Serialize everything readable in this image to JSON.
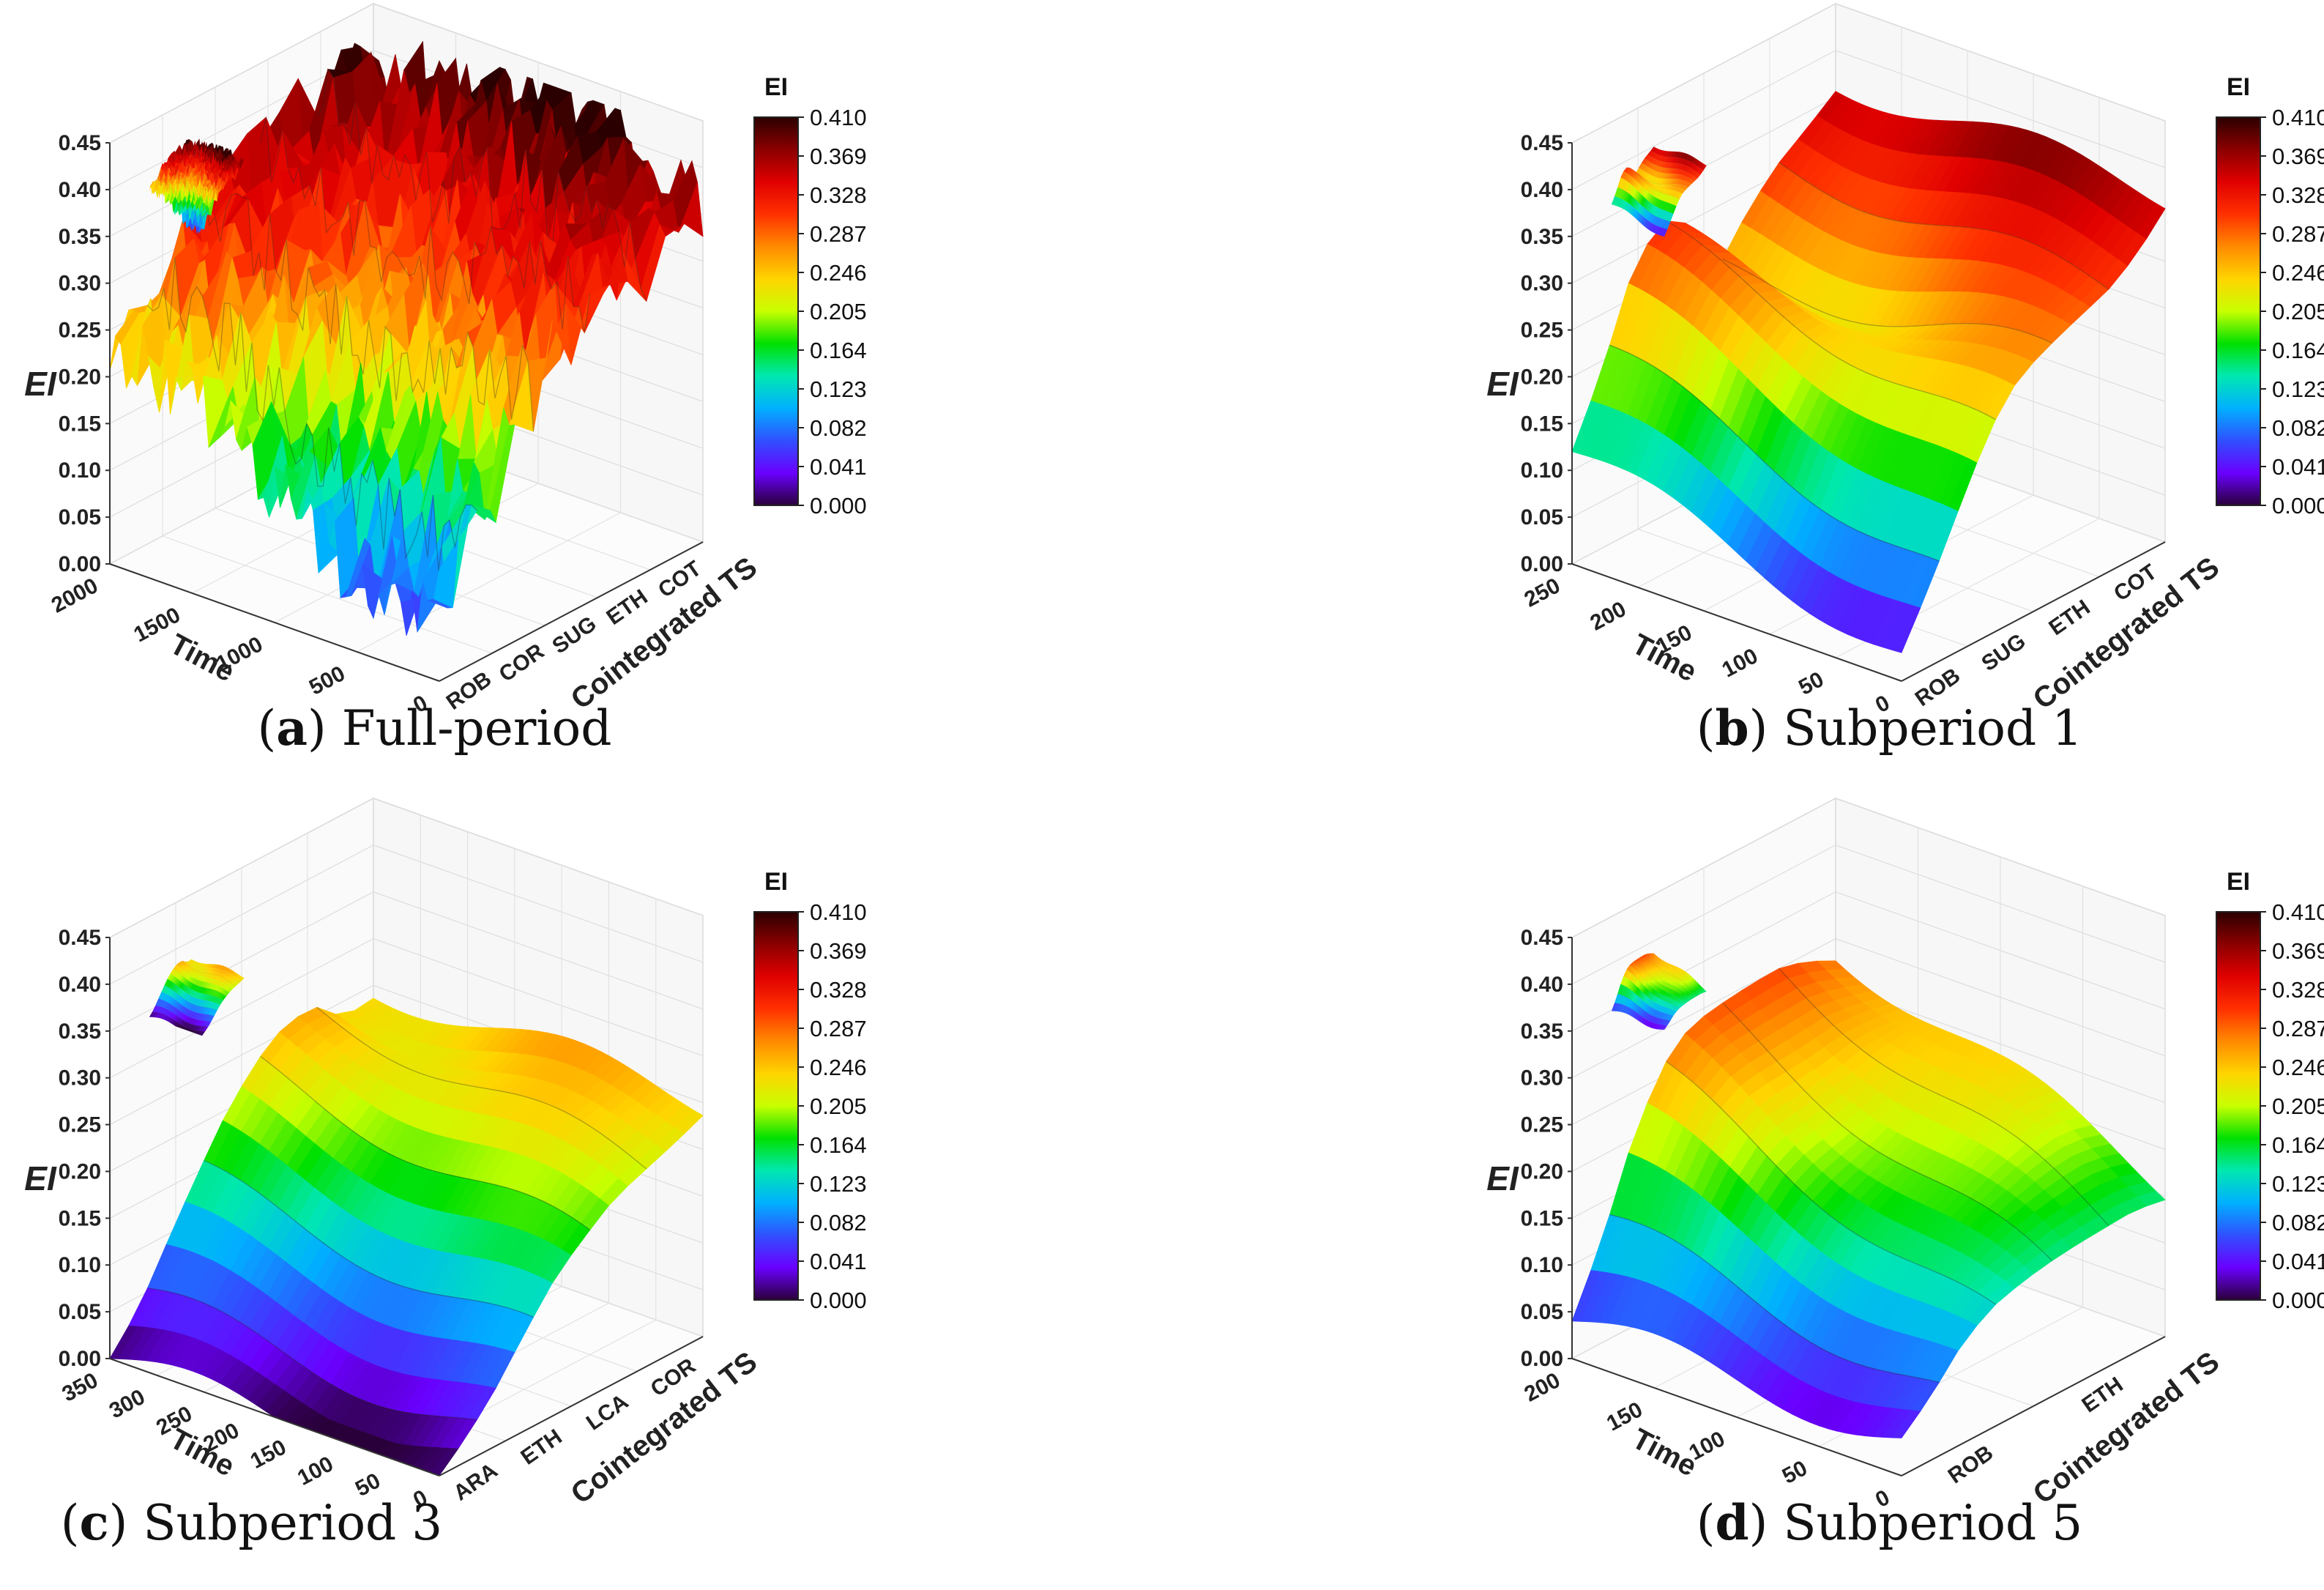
{
  "colorbar": {
    "title": "EI",
    "ticks": [
      "0.410",
      "0.369",
      "0.328",
      "0.287",
      "0.246",
      "0.205",
      "0.164",
      "0.123",
      "0.082",
      "0.041",
      "0.000"
    ],
    "stops": [
      "#2b0000",
      "#8b0000",
      "#e00000",
      "#ff3000",
      "#ff8a00",
      "#ffd400",
      "#c8ff00",
      "#00e000",
      "#00e8b0",
      "#00b0ff",
      "#3050ff",
      "#6a00ff",
      "#2a003a"
    ]
  },
  "chart_data": [
    {
      "id": "a",
      "type": "surface3d",
      "caption_letter": "a",
      "caption_text": "Full-period",
      "title": "Full-period",
      "zlabel": "EI",
      "xlabel": "Time",
      "ylabel": "Cointegrated TS",
      "z_ticks": [
        "0.45",
        "0.40",
        "0.35",
        "0.30",
        "0.25",
        "0.20",
        "0.15",
        "0.10",
        "0.05",
        "0.00"
      ],
      "x_ticks": [
        "2000",
        "1500",
        "1000",
        "500",
        "0"
      ],
      "y_ticks": [
        "ROB",
        "COR",
        "SUG",
        "ETH",
        "COT"
      ],
      "zlim": [
        0,
        0.45
      ],
      "xlim": [
        0,
        2200
      ],
      "rough": true,
      "profile": [
        0.08,
        0.1,
        0.15,
        0.22,
        0.26,
        0.29,
        0.3,
        0.31,
        0.34,
        0.38
      ],
      "time_start": [
        0.22,
        0.25,
        0.28,
        0.3,
        0.32,
        0.34,
        0.36,
        0.38,
        0.4,
        0.42
      ]
    },
    {
      "id": "b",
      "type": "surface3d",
      "caption_letter": "b",
      "caption_text": "Subperiod 1",
      "title": "Subperiod 1",
      "zlabel": "EI",
      "xlabel": "Time",
      "ylabel": "Cointegrated TS",
      "z_ticks": [
        "0.45",
        "0.40",
        "0.35",
        "0.30",
        "0.25",
        "0.20",
        "0.15",
        "0.10",
        "0.05",
        "0.00"
      ],
      "x_ticks": [
        "250",
        "200",
        "150",
        "100",
        "50",
        "0"
      ],
      "y_ticks": [
        "ROB",
        "SUG",
        "ETH",
        "COT"
      ],
      "zlim": [
        0,
        0.45
      ],
      "xlim": [
        0,
        270
      ],
      "rough": false,
      "profile": [
        0.03,
        0.08,
        0.14,
        0.2,
        0.24,
        0.26,
        0.28,
        0.3,
        0.33,
        0.37
      ],
      "time_start": [
        0.12,
        0.18,
        0.26,
        0.3,
        0.28,
        0.22,
        0.27,
        0.31,
        0.34,
        0.37
      ]
    },
    {
      "id": "c",
      "type": "surface3d",
      "caption_letter": "c",
      "caption_text": "Subperiod 3",
      "title": "Subperiod 3",
      "zlabel": "EI",
      "xlabel": "Time",
      "ylabel": "Cointegrated TS",
      "z_ticks": [
        "0.45",
        "0.40",
        "0.35",
        "0.30",
        "0.25",
        "0.20",
        "0.15",
        "0.10",
        "0.05",
        "0.00"
      ],
      "x_ticks": [
        "350",
        "300",
        "250",
        "200",
        "150",
        "100",
        "50",
        "0"
      ],
      "y_ticks": [
        "ARA",
        "ETH",
        "LCA",
        "COR"
      ],
      "zlim": [
        0,
        0.45
      ],
      "xlim": [
        0,
        380
      ],
      "rough": false,
      "profile": [
        0.0,
        0.02,
        0.05,
        0.09,
        0.13,
        0.16,
        0.19,
        0.21,
        0.23,
        0.25
      ],
      "time_start": [
        0.0,
        0.03,
        0.08,
        0.13,
        0.18,
        0.22,
        0.25,
        0.26,
        0.24,
        0.25
      ]
    },
    {
      "id": "d",
      "type": "surface3d",
      "caption_letter": "d",
      "caption_text": "Subperiod 5",
      "title": "Subperiod 5",
      "zlabel": "EI",
      "xlabel": "Time",
      "ylabel": "Cointegrated TS",
      "z_ticks": [
        "0.45",
        "0.40",
        "0.35",
        "0.30",
        "0.25",
        "0.20",
        "0.15",
        "0.10",
        "0.05",
        "0.00"
      ],
      "x_ticks": [
        "200",
        "150",
        "100",
        "50",
        "0"
      ],
      "y_ticks": [
        "ROB",
        "ETH"
      ],
      "zlim": [
        0,
        0.45
      ],
      "xlim": [
        0,
        230
      ],
      "rough": false,
      "profile": [
        0.04,
        0.06,
        0.09,
        0.11,
        0.12,
        0.13,
        0.14,
        0.15,
        0.16,
        0.16
      ],
      "time_start": [
        0.04,
        0.1,
        0.18,
        0.24,
        0.27,
        0.28,
        0.29,
        0.3,
        0.3,
        0.29
      ]
    }
  ]
}
